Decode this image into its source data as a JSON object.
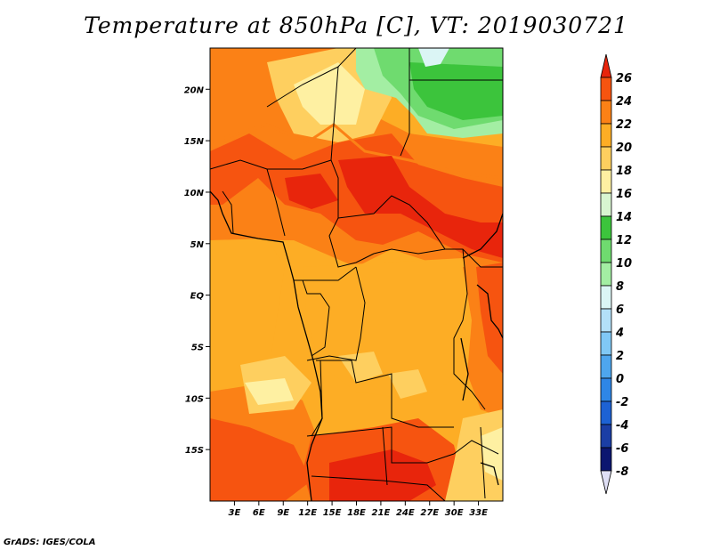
{
  "title": "Temperature at 850hPa [C], VT: 2019030721",
  "footer": "GrADS: IGES/COLA",
  "map": {
    "lon_range": [
      0,
      36
    ],
    "lat_range": [
      -20,
      24
    ],
    "lon_ticks": [
      "3E",
      "6E",
      "9E",
      "12E",
      "15E",
      "18E",
      "21E",
      "24E",
      "27E",
      "30E",
      "33E"
    ],
    "lat_ticks": [
      "20N",
      "15N",
      "10N",
      "5N",
      "EQ",
      "5S",
      "10S",
      "15S"
    ]
  },
  "colorbar": {
    "levels": [
      "26",
      "24",
      "22",
      "20",
      "18",
      "16",
      "14",
      "12",
      "10",
      "8",
      "6",
      "4",
      "2",
      "0",
      "-2",
      "-4",
      "-6",
      "-8"
    ],
    "colors": [
      "#e8250c",
      "#f65410",
      "#fb8116",
      "#fdad25",
      "#fecf5f",
      "#fef0a2",
      "#d8f5d0",
      "#3cc43c",
      "#6fdb6f",
      "#a3eea3",
      "#dbf5f5",
      "#b3e0f8",
      "#80c8f5",
      "#4ea6ee",
      "#2e86e6",
      "#1d62d4",
      "#1b3ea5",
      "#0c1670",
      "#dfdff5"
    ]
  }
}
